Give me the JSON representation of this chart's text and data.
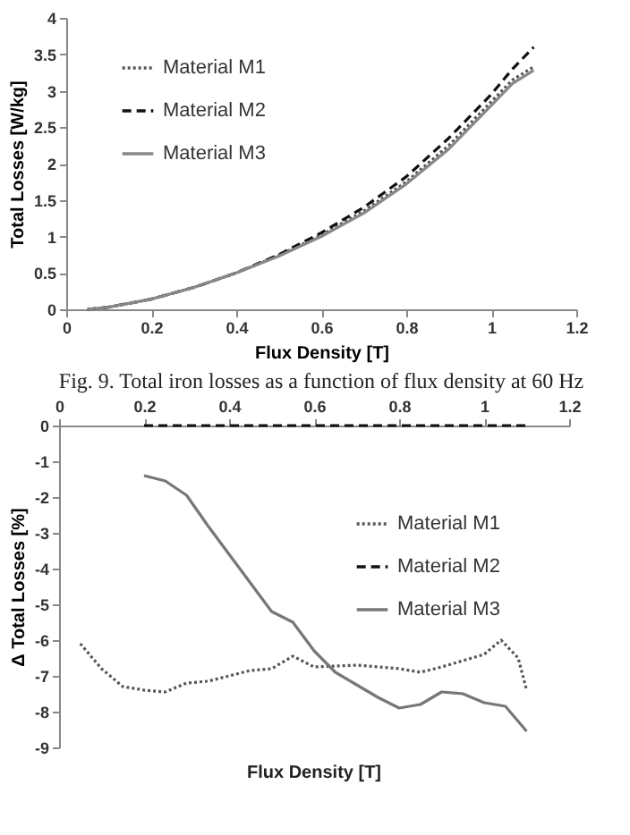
{
  "chart_data": [
    {
      "type": "line",
      "xlabel": "Flux Density [T]",
      "ylabel": "Total Losses [W/kg]",
      "annotations": [
        "Fig. 9. Total iron losses as a function of flux density at 60 Hz"
      ],
      "xlim": [
        0,
        1.2
      ],
      "xticks": [
        0,
        0.2,
        0.4,
        0.6,
        0.8,
        1,
        1.2
      ],
      "ylim": [
        0,
        4
      ],
      "yticks": [
        0,
        0.5,
        1,
        1.5,
        2,
        2.5,
        3,
        3.5,
        4
      ],
      "legend": "top left",
      "x": [
        0.05,
        0.1,
        0.2,
        0.3,
        0.4,
        0.5,
        0.6,
        0.7,
        0.8,
        0.9,
        1.0,
        1.05,
        1.1
      ],
      "series": [
        {
          "name": "Material M1",
          "color": "#555555",
          "line_style": "dotted",
          "values": [
            0,
            0.03,
            0.14,
            0.3,
            0.5,
            0.74,
            1.02,
            1.35,
            1.75,
            2.25,
            2.85,
            3.15,
            3.33
          ]
        },
        {
          "name": "Material M2",
          "color": "#111111",
          "line_style": "dashed",
          "values": [
            0,
            0.03,
            0.14,
            0.3,
            0.5,
            0.75,
            1.05,
            1.4,
            1.82,
            2.35,
            2.95,
            3.3,
            3.6
          ]
        },
        {
          "name": "Material M3",
          "color": "#888888",
          "line_style": "solid",
          "values": [
            0,
            0.03,
            0.14,
            0.3,
            0.5,
            0.73,
            1.0,
            1.32,
            1.72,
            2.2,
            2.8,
            3.1,
            3.28
          ]
        }
      ]
    },
    {
      "type": "line",
      "xlabel": "Flux Density [T]",
      "ylabel": "Δ Total Losses [%]",
      "xlim": [
        0,
        1.2
      ],
      "xticks": [
        0,
        0.2,
        0.4,
        0.6,
        0.8,
        1,
        1.2
      ],
      "ylim": [
        -9,
        0
      ],
      "yticks": [
        -9,
        -8,
        -7,
        -6,
        -5,
        -4,
        -3,
        -2,
        -1,
        0
      ],
      "legend": "right",
      "series": [
        {
          "name": "Material M1",
          "color": "#555555",
          "line_style": "dotted",
          "x": [
            0.05,
            0.1,
            0.15,
            0.2,
            0.25,
            0.3,
            0.35,
            0.4,
            0.45,
            0.5,
            0.55,
            0.6,
            0.7,
            0.8,
            0.85,
            0.9,
            1.0,
            1.04,
            1.08,
            1.1
          ],
          "values": [
            -6.1,
            -6.8,
            -7.3,
            -7.4,
            -7.45,
            -7.2,
            -7.15,
            -7.0,
            -6.85,
            -6.8,
            -6.45,
            -6.75,
            -6.7,
            -6.8,
            -6.9,
            -6.75,
            -6.4,
            -6.0,
            -6.5,
            -7.4
          ]
        },
        {
          "name": "Material M2",
          "color": "#111111",
          "line_style": "dashed",
          "x": [
            0.2,
            0.4,
            0.6,
            0.8,
            1.0,
            1.1
          ],
          "values": [
            0,
            0,
            0,
            0,
            0,
            0
          ]
        },
        {
          "name": "Material M3",
          "color": "#777777",
          "line_style": "solid",
          "x": [
            0.2,
            0.25,
            0.3,
            0.35,
            0.4,
            0.45,
            0.5,
            0.55,
            0.6,
            0.65,
            0.7,
            0.75,
            0.8,
            0.85,
            0.9,
            0.95,
            1.0,
            1.05,
            1.1
          ],
          "values": [
            -1.4,
            -1.55,
            -1.95,
            -2.8,
            -3.6,
            -4.4,
            -5.2,
            -5.5,
            -6.3,
            -6.9,
            -7.25,
            -7.6,
            -7.9,
            -7.8,
            -7.45,
            -7.5,
            -7.75,
            -7.85,
            -8.55
          ]
        }
      ]
    }
  ]
}
